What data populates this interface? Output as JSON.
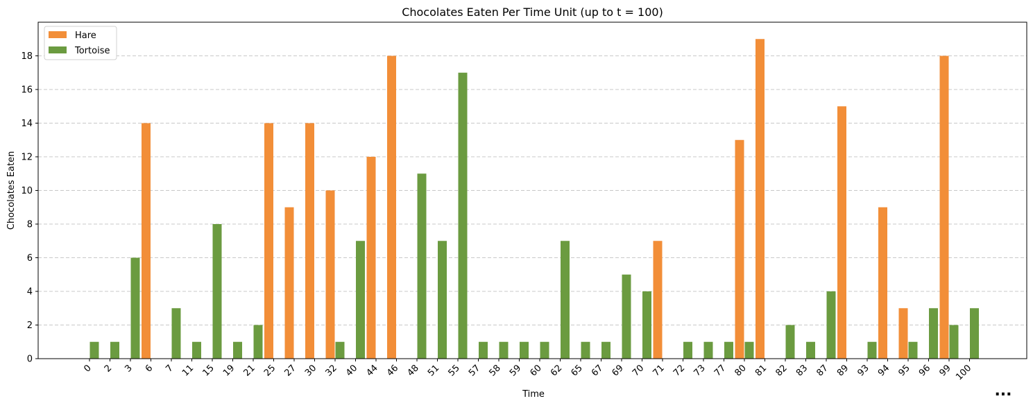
{
  "chart_data": {
    "type": "bar",
    "title": "Chocolates Eaten Per Time Unit (up to t = 100)",
    "xlabel": "Time",
    "ylabel": "Chocolates Eaten",
    "ylim": [
      0,
      20
    ],
    "yticks": [
      0,
      2,
      4,
      6,
      8,
      10,
      12,
      14,
      16,
      18
    ],
    "grid": "y-dashed",
    "legend_position": "top-left",
    "categories": [
      "0",
      "2",
      "3",
      "6",
      "7",
      "11",
      "15",
      "19",
      "21",
      "25",
      "27",
      "30",
      "32",
      "40",
      "44",
      "46",
      "48",
      "51",
      "55",
      "57",
      "58",
      "59",
      "60",
      "62",
      "65",
      "67",
      "69",
      "70",
      "71",
      "72",
      "73",
      "77",
      "80",
      "81",
      "82",
      "83",
      "87",
      "89",
      "93",
      "94",
      "95",
      "96",
      "99",
      "100"
    ],
    "series": [
      {
        "name": "Hare",
        "color": "#f28e38",
        "values": [
          0,
          0,
          0,
          14,
          0,
          0,
          0,
          0,
          0,
          14,
          9,
          14,
          10,
          0,
          12,
          18,
          0,
          0,
          0,
          0,
          0,
          0,
          0,
          0,
          0,
          0,
          0,
          0,
          7,
          0,
          0,
          0,
          13,
          19,
          0,
          0,
          0,
          15,
          0,
          9,
          3,
          0,
          18,
          0
        ]
      },
      {
        "name": "Tortoise",
        "color": "#6b9b40",
        "values": [
          1,
          1,
          6,
          0,
          3,
          1,
          8,
          1,
          2,
          0,
          0,
          0,
          1,
          7,
          0,
          0,
          11,
          7,
          17,
          1,
          1,
          1,
          1,
          7,
          1,
          1,
          5,
          4,
          0,
          1,
          1,
          1,
          1,
          0,
          2,
          1,
          4,
          0,
          1,
          0,
          1,
          3,
          2,
          3
        ]
      }
    ],
    "continuation_marker": "..."
  }
}
